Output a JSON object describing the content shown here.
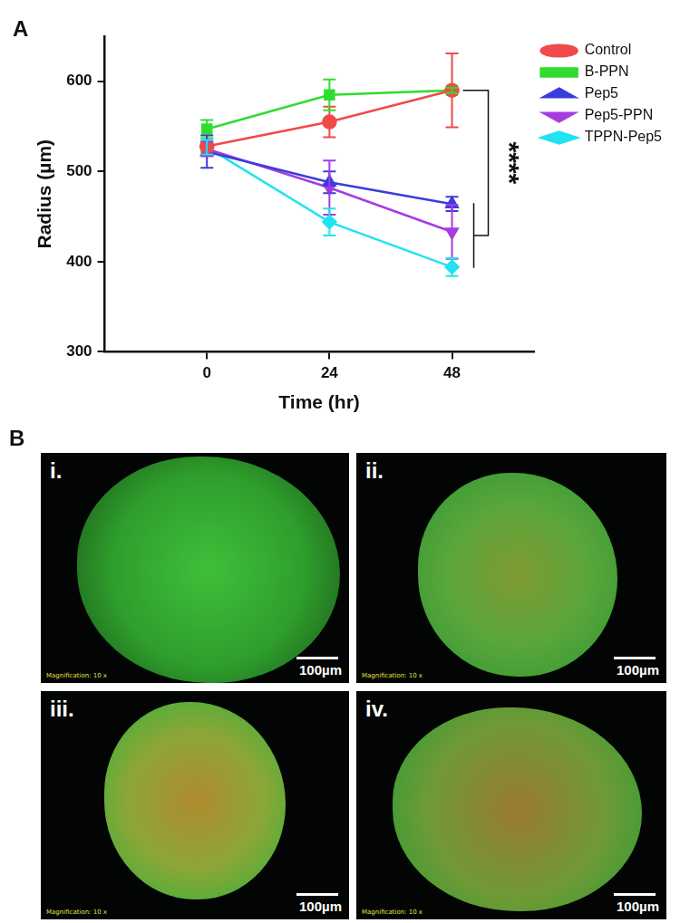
{
  "chart_data": {
    "type": "line",
    "panel_label": "A",
    "x_label": "Time (hr)",
    "y_label": "Radius (µm)",
    "x": [
      0,
      24,
      48
    ],
    "xlim": [
      -20,
      64
    ],
    "xticks": [
      0,
      24,
      48
    ],
    "ylim": [
      300,
      650
    ],
    "yticks": [
      300,
      400,
      500,
      600
    ],
    "grid": false,
    "legend": "upper right",
    "series": [
      {
        "name": "Control",
        "color": "#f04a4a",
        "marker": "circle",
        "values": [
          528,
          555,
          590
        ],
        "errors": [
          6,
          17,
          41
        ]
      },
      {
        "name": "B-PPN",
        "color": "#2fdc2f",
        "marker": "square",
        "values": [
          547,
          585,
          590
        ],
        "errors": [
          10,
          17,
          3
        ]
      },
      {
        "name": "Pep5",
        "color": "#3c3cdc",
        "marker": "triangle",
        "values": [
          522,
          488,
          464
        ],
        "errors": [
          18,
          12,
          8
        ]
      },
      {
        "name": "Pep5-PPN",
        "color": "#a63ce0",
        "marker": "triangle-down",
        "values": [
          525,
          482,
          433
        ],
        "errors": [
          8,
          30,
          30
        ]
      },
      {
        "name": "TPPN-Pep5",
        "color": "#22e3f0",
        "marker": "diamond",
        "values": [
          527,
          444,
          394
        ],
        "errors": [
          8,
          15,
          10
        ]
      }
    ],
    "annotation": {
      "text": "****",
      "x": 48,
      "bracket_top": 590,
      "bracket_bottom": [
        393,
        465
      ]
    }
  },
  "panel_b": {
    "label": "B",
    "images": [
      {
        "label": "i.",
        "scale_bar": "100µm",
        "magnification": "Magnification: 10 x"
      },
      {
        "label": "ii.",
        "scale_bar": "100µm",
        "magnification": "Magnification: 10 x"
      },
      {
        "label": "iii.",
        "scale_bar": "100µm",
        "magnification": "Magnification: 10 x"
      },
      {
        "label": "iv.",
        "scale_bar": "100µm",
        "magnification": "Magnification: 10 x"
      }
    ]
  }
}
